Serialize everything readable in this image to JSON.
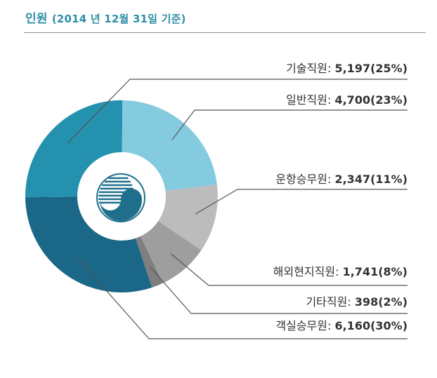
{
  "header": {
    "title": "인원",
    "subtitle": "(2014 년 12월 31일 기준)"
  },
  "colors": {
    "title": "#2e8fa6",
    "leader": "#555555"
  },
  "chart_data": {
    "type": "pie",
    "title": "인원 (2014 년 12월 31일 기준)",
    "categories": [
      "기술직원",
      "일반직원",
      "운항승무원",
      "해외현지직원",
      "기타직원",
      "객실승무원"
    ],
    "values": [
      5197,
      4700,
      2347,
      1741,
      398,
      6160
    ],
    "percents": [
      25,
      23,
      11,
      8,
      2,
      30
    ],
    "labels": [
      {
        "name": "기술직원:",
        "value": "5,197(25%)",
        "color": "#2491ae"
      },
      {
        "name": "일반직원:",
        "value": "4,700(23%)",
        "color": "#84cbe0"
      },
      {
        "name": "운항승무원:",
        "value": "2,347(11%)",
        "color": "#bcbcbc"
      },
      {
        "name": "해외현지직원:",
        "value": "1,741(8%)",
        "color": "#9e9e9e"
      },
      {
        "name": "기타직원:",
        "value": "398(2%)",
        "color": "#7f7f7f"
      },
      {
        "name": "객실승무원:",
        "value": "6,160(30%)",
        "color": "#1a6787"
      }
    ],
    "legend": "none",
    "center_logo": "government-emblem"
  }
}
